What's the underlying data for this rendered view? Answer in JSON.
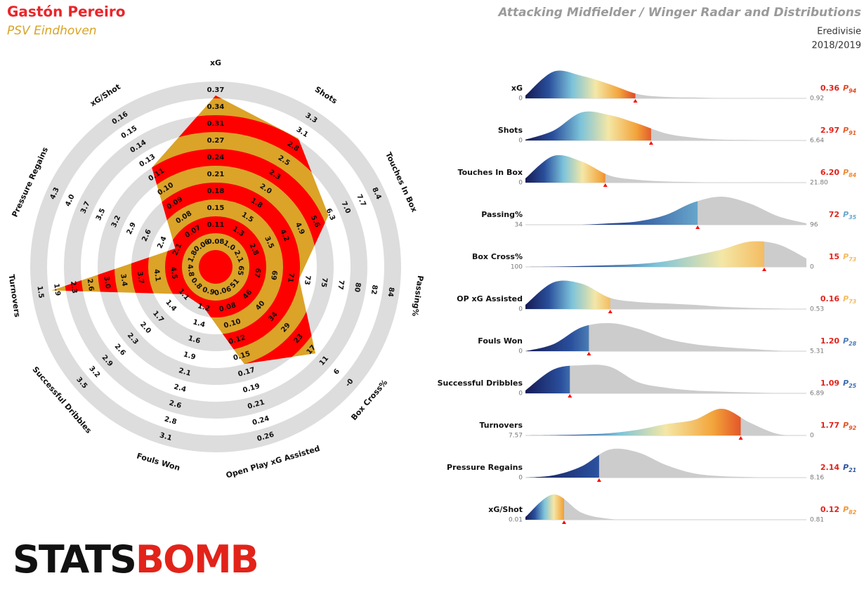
{
  "header": {
    "player": "Gastón Pereiro",
    "team": "PSV Eindhoven",
    "title": "Attacking Midfielder / Winger Radar and Distributions",
    "league": "Eredivisie",
    "season": "2018/2019"
  },
  "chart_data": [
    {
      "type": "radar",
      "categories": [
        "xG",
        "Shots",
        "Touches In Box",
        "Passing%",
        "Box Cross%",
        "Open Play xG Assisted",
        "Fouls Won",
        "Successful Dribbles",
        "Turnovers",
        "Pressure Regains",
        "xG/Shot"
      ],
      "ticks": [
        [
          0.08,
          0.11,
          0.15,
          0.18,
          0.21,
          0.24,
          0.27,
          0.31,
          0.34,
          0.37
        ],
        [
          {
            "value": 1,
            "label": "1.0"
          },
          1.3,
          1.5,
          1.8,
          {
            "value": 2,
            "label": "2.0"
          },
          2.3,
          2.5,
          2.8,
          3.1,
          3.3
        ],
        [
          2.1,
          2.8,
          3.5,
          4.2,
          4.9,
          5.6,
          6.3,
          {
            "value": 7,
            "label": "7.0"
          },
          7.7,
          8.4
        ],
        [
          65,
          67,
          69,
          71,
          73,
          75,
          77,
          80,
          82,
          84
        ],
        [
          51,
          46,
          40,
          34,
          29,
          23,
          17,
          11,
          6,
          {
            "value": 0,
            "label": "-0"
          }
        ],
        [
          0.06,
          0.08,
          {
            "value": 0.1,
            "label": "0.10"
          },
          0.12,
          0.15,
          0.17,
          0.19,
          0.21,
          0.24,
          0.26
        ],
        [
          0.9,
          1.2,
          1.4,
          1.6,
          1.9,
          2.1,
          2.4,
          2.6,
          2.8,
          3.1
        ],
        [
          0.8,
          1.1,
          1.4,
          1.7,
          {
            "value": 2,
            "label": "2.0"
          },
          2.3,
          2.6,
          2.9,
          3.2,
          3.5
        ],
        [
          4.8,
          4.5,
          4.1,
          3.7,
          3.4,
          {
            "value": 3,
            "label": "3.0"
          },
          2.6,
          2.3,
          1.9,
          1.5
        ],
        [
          1.8,
          2.1,
          2.4,
          2.6,
          2.9,
          3.2,
          3.5,
          3.7,
          {
            "value": 4,
            "label": "4.0"
          },
          4.3
        ],
        [
          0.06,
          0.07,
          0.08,
          0.09,
          {
            "value": 0.1,
            "label": "0.10"
          },
          0.11,
          0.13,
          0.14,
          0.15,
          0.16
        ]
      ],
      "values": [
        0.36,
        2.97,
        6.2,
        72,
        15,
        0.16,
        1.2,
        1.09,
        1.77,
        2.14,
        0.12
      ],
      "colors": {
        "fill": "#dba328",
        "band": "#ff0000",
        "ring": "#dddddd"
      }
    },
    {
      "type": "distribution",
      "percentile_prefix": "P",
      "colormap": [
        "#151a55",
        "#2a4f9c",
        "#7cc3da",
        "#f4e7a6",
        "#f3a53c",
        "#d8231a"
      ],
      "rest_color": "#cccccc",
      "marker_color": "#ff0000",
      "rows": [
        {
          "name": "xG",
          "xlim": [
            0,
            0.92
          ],
          "value": 0.36,
          "percentile": 94,
          "density": [
            10,
            95,
            80,
            50,
            15,
            5,
            3,
            1,
            1,
            0,
            0
          ]
        },
        {
          "name": "Shots",
          "xlim": [
            0,
            6.64
          ],
          "value": 2.97,
          "percentile": 91,
          "density": [
            3,
            35,
            100,
            90,
            60,
            25,
            10,
            3,
            2,
            1,
            0
          ]
        },
        {
          "name": "Touches In Box",
          "xlim": [
            0,
            {
              "value": 21.8,
              "label": "21.80"
            }
          ],
          "value": 6.2,
          "value_label": "6.20",
          "percentile": 84,
          "density": [
            15,
            95,
            75,
            25,
            10,
            4,
            2,
            1,
            1,
            0,
            0
          ]
        },
        {
          "name": "Passing%",
          "xlim": [
            34,
            96
          ],
          "value": 72,
          "percentile": 35,
          "density": [
            0,
            0,
            0,
            5,
            12,
            35,
            80,
            100,
            75,
            30,
            5
          ]
        },
        {
          "name": "Box Cross%",
          "xlim": [
            100,
            0
          ],
          "value": 15,
          "percentile": 73,
          "density": [
            0,
            1,
            3,
            6,
            10,
            20,
            40,
            62,
            90,
            80,
            30
          ]
        },
        {
          "name": "OP xG Assisted",
          "xlim": [
            0,
            0.53
          ],
          "value": 0.16,
          "percentile": 73,
          "density": [
            15,
            95,
            90,
            40,
            25,
            20,
            15,
            8,
            4,
            2,
            0
          ]
        },
        {
          "name": "Fouls Won",
          "xlim": [
            0,
            5.31
          ],
          "value": 1.2,
          "value_label": "1.20",
          "percentile": 28,
          "density": [
            0,
            25,
            85,
            100,
            80,
            45,
            25,
            15,
            8,
            2,
            0
          ]
        },
        {
          "name": "Successful Dribbles",
          "xlim": [
            0,
            6.89
          ],
          "value": 1.09,
          "percentile": 25,
          "density": [
            10,
            85,
            100,
            95,
            40,
            20,
            10,
            6,
            3,
            1,
            0
          ]
        },
        {
          "name": "Turnovers",
          "xlim": [
            7.57,
            0
          ],
          "value": 1.77,
          "percentile": 92,
          "density": [
            0,
            1,
            3,
            8,
            20,
            40,
            55,
            95,
            45,
            5,
            0
          ]
        },
        {
          "name": "Pressure Regains",
          "xlim": [
            0,
            8.16
          ],
          "value": 2.14,
          "percentile": 21,
          "density": [
            0,
            8,
            40,
            100,
            90,
            45,
            15,
            5,
            2,
            0,
            0
          ]
        },
        {
          "name": "xG/Shot",
          "xlim": [
            0.01,
            0.81
          ],
          "value": 0.12,
          "percentile": 82,
          "density": [
            10,
            90,
            25,
            3,
            0,
            0,
            0,
            0,
            0,
            0,
            0
          ]
        }
      ]
    }
  ],
  "logo": {
    "left": "STATS",
    "right": "BOMB"
  }
}
